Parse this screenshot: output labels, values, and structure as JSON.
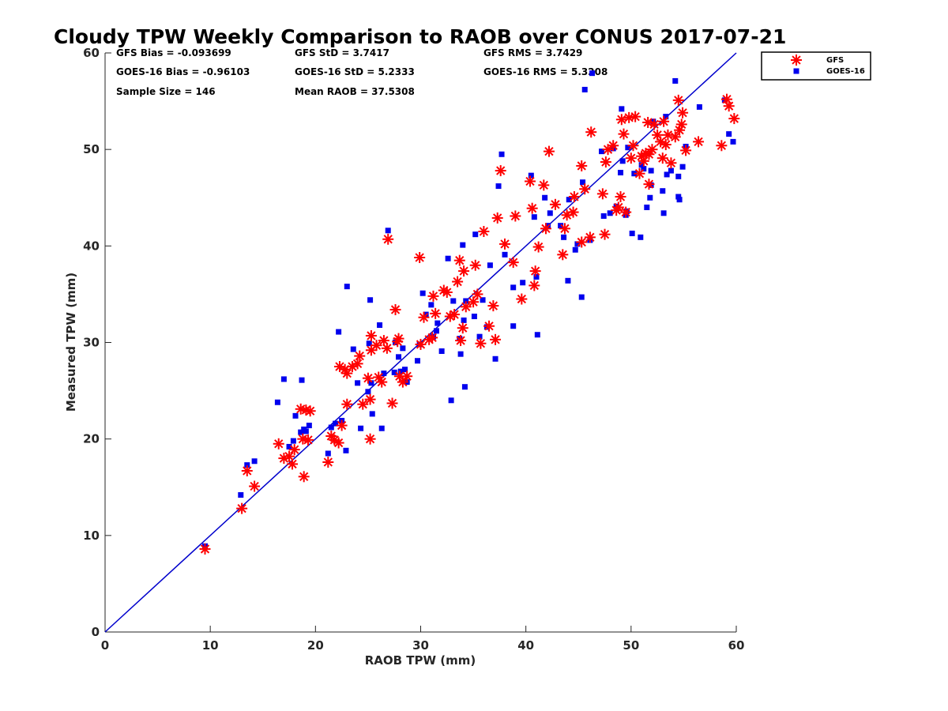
{
  "chart_data": {
    "type": "scatter",
    "title": "Cloudy TPW Weekly Comparison to RAOB over CONUS 2017-07-21",
    "xlabel": "RAOB TPW (mm)",
    "ylabel": "Measured TPW (mm)",
    "xlim": [
      0,
      60
    ],
    "ylim": [
      0,
      60
    ],
    "xticks": [
      "0",
      "10",
      "20",
      "30",
      "40",
      "50",
      "60"
    ],
    "yticks": [
      "0",
      "10",
      "20",
      "30",
      "40",
      "50",
      "60"
    ],
    "grid": false,
    "legend_position": "outside top-right",
    "stats": {
      "gfs_bias": "GFS Bias = -0.093699",
      "gfs_std": "GFS StD = 3.7417",
      "gfs_rms": "GFS RMS = 3.7429",
      "goes_bias": "GOES-16 Bias = -0.96103",
      "goes_std": "GOES-16 StD = 5.2333",
      "goes_rms": "GOES-16 RMS = 5.3208",
      "sample_size": "Sample Size = 146",
      "mean_raob": "Mean RAOB = 37.5308"
    },
    "reference_line": {
      "name": "1:1 line",
      "x": [
        0,
        60
      ],
      "y": [
        0,
        60
      ],
      "color": "#0000cc"
    },
    "series": [
      {
        "name": "GFS",
        "marker": "asterisk",
        "color": "#ff0000",
        "points": [
          [
            9.5,
            8.6
          ],
          [
            13,
            12.8
          ],
          [
            13.5,
            16.7
          ],
          [
            14.2,
            15.1
          ],
          [
            16.5,
            19.5
          ],
          [
            17,
            18
          ],
          [
            17.5,
            18.2
          ],
          [
            17.8,
            17.4
          ],
          [
            18,
            18.9
          ],
          [
            18.6,
            23.1
          ],
          [
            18.8,
            20.0
          ],
          [
            18.9,
            16.1
          ],
          [
            19.1,
            23.0
          ],
          [
            19.3,
            19.9
          ],
          [
            19.5,
            22.9
          ],
          [
            21.2,
            17.6
          ],
          [
            21.5,
            20.3
          ],
          [
            21.8,
            19.9
          ],
          [
            22.2,
            19.6
          ],
          [
            22.3,
            27.5
          ],
          [
            22.5,
            21.4
          ],
          [
            22.8,
            27.2
          ],
          [
            23,
            23.6
          ],
          [
            23,
            26.8
          ],
          [
            23.5,
            27.5
          ],
          [
            24,
            27.8
          ],
          [
            24.2,
            28.6
          ],
          [
            24.5,
            23.6
          ],
          [
            25,
            26.3
          ],
          [
            25.2,
            24.1
          ],
          [
            25.2,
            20.0
          ],
          [
            25.3,
            29.2
          ],
          [
            25.3,
            30.7
          ],
          [
            25.8,
            29.7
          ],
          [
            26,
            26.4
          ],
          [
            26.3,
            25.9
          ],
          [
            26.5,
            30.2
          ],
          [
            26.8,
            29.4
          ],
          [
            26.9,
            40.7
          ],
          [
            27.3,
            23.7
          ],
          [
            27.6,
            33.4
          ],
          [
            27.8,
            30.1
          ],
          [
            27.9,
            30.4
          ],
          [
            28,
            26.5
          ],
          [
            28.3,
            25.9
          ],
          [
            28.7,
            26.5
          ],
          [
            29.9,
            38.8
          ],
          [
            30,
            29.8
          ],
          [
            30.3,
            32.6
          ],
          [
            30.8,
            30.3
          ],
          [
            31.1,
            30.5
          ],
          [
            31.2,
            34.8
          ],
          [
            31.4,
            33.0
          ],
          [
            32.2,
            35.4
          ],
          [
            32.5,
            35.2
          ],
          [
            32.8,
            32.7
          ],
          [
            33.2,
            32.9
          ],
          [
            33.5,
            36.3
          ],
          [
            33.7,
            38.5
          ],
          [
            33.8,
            30.2
          ],
          [
            34,
            31.5
          ],
          [
            34.1,
            37.4
          ],
          [
            34.3,
            33.7
          ],
          [
            35,
            34.2
          ],
          [
            35.2,
            38
          ],
          [
            35.4,
            35.0
          ],
          [
            35.7,
            29.9
          ],
          [
            36,
            41.5
          ],
          [
            36.5,
            31.7
          ],
          [
            36.9,
            33.8
          ],
          [
            37.1,
            30.3
          ],
          [
            37.3,
            42.9
          ],
          [
            37.6,
            47.8
          ],
          [
            38,
            40.2
          ],
          [
            38.8,
            38.3
          ],
          [
            39,
            43.1
          ],
          [
            39.6,
            34.5
          ],
          [
            40.4,
            46.7
          ],
          [
            40.6,
            43.9
          ],
          [
            40.8,
            35.9
          ],
          [
            40.9,
            37.4
          ],
          [
            41.2,
            39.9
          ],
          [
            41.7,
            46.3
          ],
          [
            41.9,
            41.8
          ],
          [
            42.2,
            49.8
          ],
          [
            42.8,
            44.3
          ],
          [
            43.5,
            39.1
          ],
          [
            43.7,
            41.8
          ],
          [
            43.9,
            43.2
          ],
          [
            44.5,
            43.5
          ],
          [
            44.6,
            45.1
          ],
          [
            45.3,
            48.3
          ],
          [
            45.3,
            40.4
          ],
          [
            45.6,
            45.9
          ],
          [
            46.1,
            40.9
          ],
          [
            46.2,
            51.8
          ],
          [
            47.3,
            45.4
          ],
          [
            47.5,
            41.2
          ],
          [
            47.6,
            48.7
          ],
          [
            47.8,
            50
          ],
          [
            48.3,
            50.4
          ],
          [
            48.6,
            43.7
          ],
          [
            48.8,
            44
          ],
          [
            49,
            45.1
          ],
          [
            49.1,
            53.1
          ],
          [
            49.3,
            51.6
          ],
          [
            49.5,
            43.5
          ],
          [
            49.8,
            53.3
          ],
          [
            50,
            49.1
          ],
          [
            50.2,
            50.4
          ],
          [
            50.4,
            53.4
          ],
          [
            50.8,
            47.5
          ],
          [
            51,
            49.3
          ],
          [
            51.2,
            48.8
          ],
          [
            51.4,
            49.6
          ],
          [
            51.6,
            52.8
          ],
          [
            51.7,
            46.4
          ],
          [
            51.7,
            49.5
          ],
          [
            52,
            50
          ],
          [
            52.2,
            52.6
          ],
          [
            52.5,
            51.5
          ],
          [
            52.8,
            50.8
          ],
          [
            53,
            49.1
          ],
          [
            53.1,
            52.9
          ],
          [
            53.3,
            50.5
          ],
          [
            53.5,
            51.5
          ],
          [
            53.8,
            48.6
          ],
          [
            54.2,
            51.3
          ],
          [
            54.5,
            55.1
          ],
          [
            54.6,
            52
          ],
          [
            54.8,
            52.6
          ],
          [
            54.9,
            53.8
          ],
          [
            55.2,
            49.9
          ],
          [
            56.4,
            50.8
          ],
          [
            58.6,
            50.4
          ],
          [
            59.1,
            55.2
          ],
          [
            59.3,
            54.5
          ],
          [
            59.8,
            53.2
          ]
        ]
      },
      {
        "name": "GOES-16",
        "marker": "square",
        "color": "#0000ee",
        "points": [
          [
            9.5,
            8.9
          ],
          [
            12.9,
            14.2
          ],
          [
            13.5,
            17.3
          ],
          [
            14.2,
            17.7
          ],
          [
            16.4,
            23.8
          ],
          [
            17,
            26.2
          ],
          [
            17.5,
            19.2
          ],
          [
            17.9,
            19.8
          ],
          [
            18.1,
            22.4
          ],
          [
            18.6,
            20.7
          ],
          [
            18.7,
            26.1
          ],
          [
            18.9,
            21.0
          ],
          [
            19.1,
            20.8
          ],
          [
            19.4,
            21.4
          ],
          [
            21.2,
            18.5
          ],
          [
            21.5,
            21.2
          ],
          [
            21.9,
            21.6
          ],
          [
            22.2,
            31.1
          ],
          [
            22.5,
            21.9
          ],
          [
            22.9,
            18.8
          ],
          [
            23,
            35.8
          ],
          [
            23.6,
            29.3
          ],
          [
            24,
            25.8
          ],
          [
            24.3,
            21.1
          ],
          [
            25,
            24.9
          ],
          [
            25.1,
            29.9
          ],
          [
            25.2,
            34.4
          ],
          [
            25.3,
            25.8
          ],
          [
            25.4,
            22.6
          ],
          [
            26.1,
            31.8
          ],
          [
            26.3,
            21.1
          ],
          [
            26.5,
            26.8
          ],
          [
            26.9,
            41.6
          ],
          [
            27.5,
            26.9
          ],
          [
            27.6,
            30
          ],
          [
            27.9,
            28.5
          ],
          [
            28.1,
            27.0
          ],
          [
            28.3,
            29.4
          ],
          [
            28.5,
            27.2
          ],
          [
            28.7,
            25.9
          ],
          [
            29.7,
            28.1
          ],
          [
            29.9,
            29.8
          ],
          [
            30.2,
            35.1
          ],
          [
            30.5,
            32.9
          ],
          [
            31,
            33.9
          ],
          [
            31.2,
            30.6
          ],
          [
            31.5,
            31.2
          ],
          [
            31.6,
            32
          ],
          [
            32,
            29.1
          ],
          [
            32.6,
            38.7
          ],
          [
            32.9,
            24
          ],
          [
            33.1,
            34.3
          ],
          [
            33.7,
            30.4
          ],
          [
            33.8,
            28.8
          ],
          [
            34,
            40.1
          ],
          [
            34.1,
            32.3
          ],
          [
            34.2,
            25.4
          ],
          [
            34.3,
            34.3
          ],
          [
            35.1,
            32.7
          ],
          [
            35.2,
            41.2
          ],
          [
            35.6,
            30.6
          ],
          [
            35.9,
            34.4
          ],
          [
            36.3,
            31.6
          ],
          [
            36.6,
            38
          ],
          [
            37.1,
            28.3
          ],
          [
            37.4,
            46.2
          ],
          [
            37.7,
            49.5
          ],
          [
            38,
            39.1
          ],
          [
            38.8,
            35.7
          ],
          [
            38.8,
            31.7
          ],
          [
            39.7,
            36.2
          ],
          [
            40.5,
            47.3
          ],
          [
            40.8,
            43
          ],
          [
            41,
            36.8
          ],
          [
            41.1,
            30.8
          ],
          [
            41.8,
            45
          ],
          [
            42.1,
            42.1
          ],
          [
            42.3,
            43.4
          ],
          [
            43.3,
            42.1
          ],
          [
            43.6,
            40.9
          ],
          [
            44,
            36.4
          ],
          [
            44.1,
            44.8
          ],
          [
            44.7,
            39.6
          ],
          [
            44.9,
            40.2
          ],
          [
            45.3,
            34.7
          ],
          [
            45.4,
            46.6
          ],
          [
            45.6,
            56.2
          ],
          [
            46.1,
            40.6
          ],
          [
            46.3,
            57.9
          ],
          [
            47.2,
            49.8
          ],
          [
            47.4,
            43.1
          ],
          [
            48,
            43.4
          ],
          [
            48.3,
            50.1
          ],
          [
            48.6,
            44.1
          ],
          [
            49,
            47.6
          ],
          [
            49.1,
            54.2
          ],
          [
            49.2,
            48.8
          ],
          [
            49.5,
            43.2
          ],
          [
            49.6,
            43.6
          ],
          [
            49.7,
            50.2
          ],
          [
            50.1,
            41.3
          ],
          [
            50.3,
            47.5
          ],
          [
            50.9,
            40.9
          ],
          [
            51,
            48.4
          ],
          [
            51.2,
            48
          ],
          [
            51.5,
            44
          ],
          [
            51.8,
            45
          ],
          [
            51.9,
            46.3
          ],
          [
            51.9,
            47.8
          ],
          [
            52.1,
            52.9
          ],
          [
            53,
            45.7
          ],
          [
            53.1,
            43.4
          ],
          [
            53.3,
            53.4
          ],
          [
            53.4,
            47.4
          ],
          [
            53.8,
            47.8
          ],
          [
            54.2,
            57.1
          ],
          [
            54.5,
            47.2
          ],
          [
            54.5,
            45.1
          ],
          [
            54.6,
            44.8
          ],
          [
            54.9,
            48.2
          ],
          [
            55.2,
            50.3
          ],
          [
            56.5,
            54.4
          ],
          [
            58.9,
            55.1
          ],
          [
            59.3,
            51.6
          ],
          [
            59.7,
            50.8
          ]
        ]
      }
    ]
  }
}
